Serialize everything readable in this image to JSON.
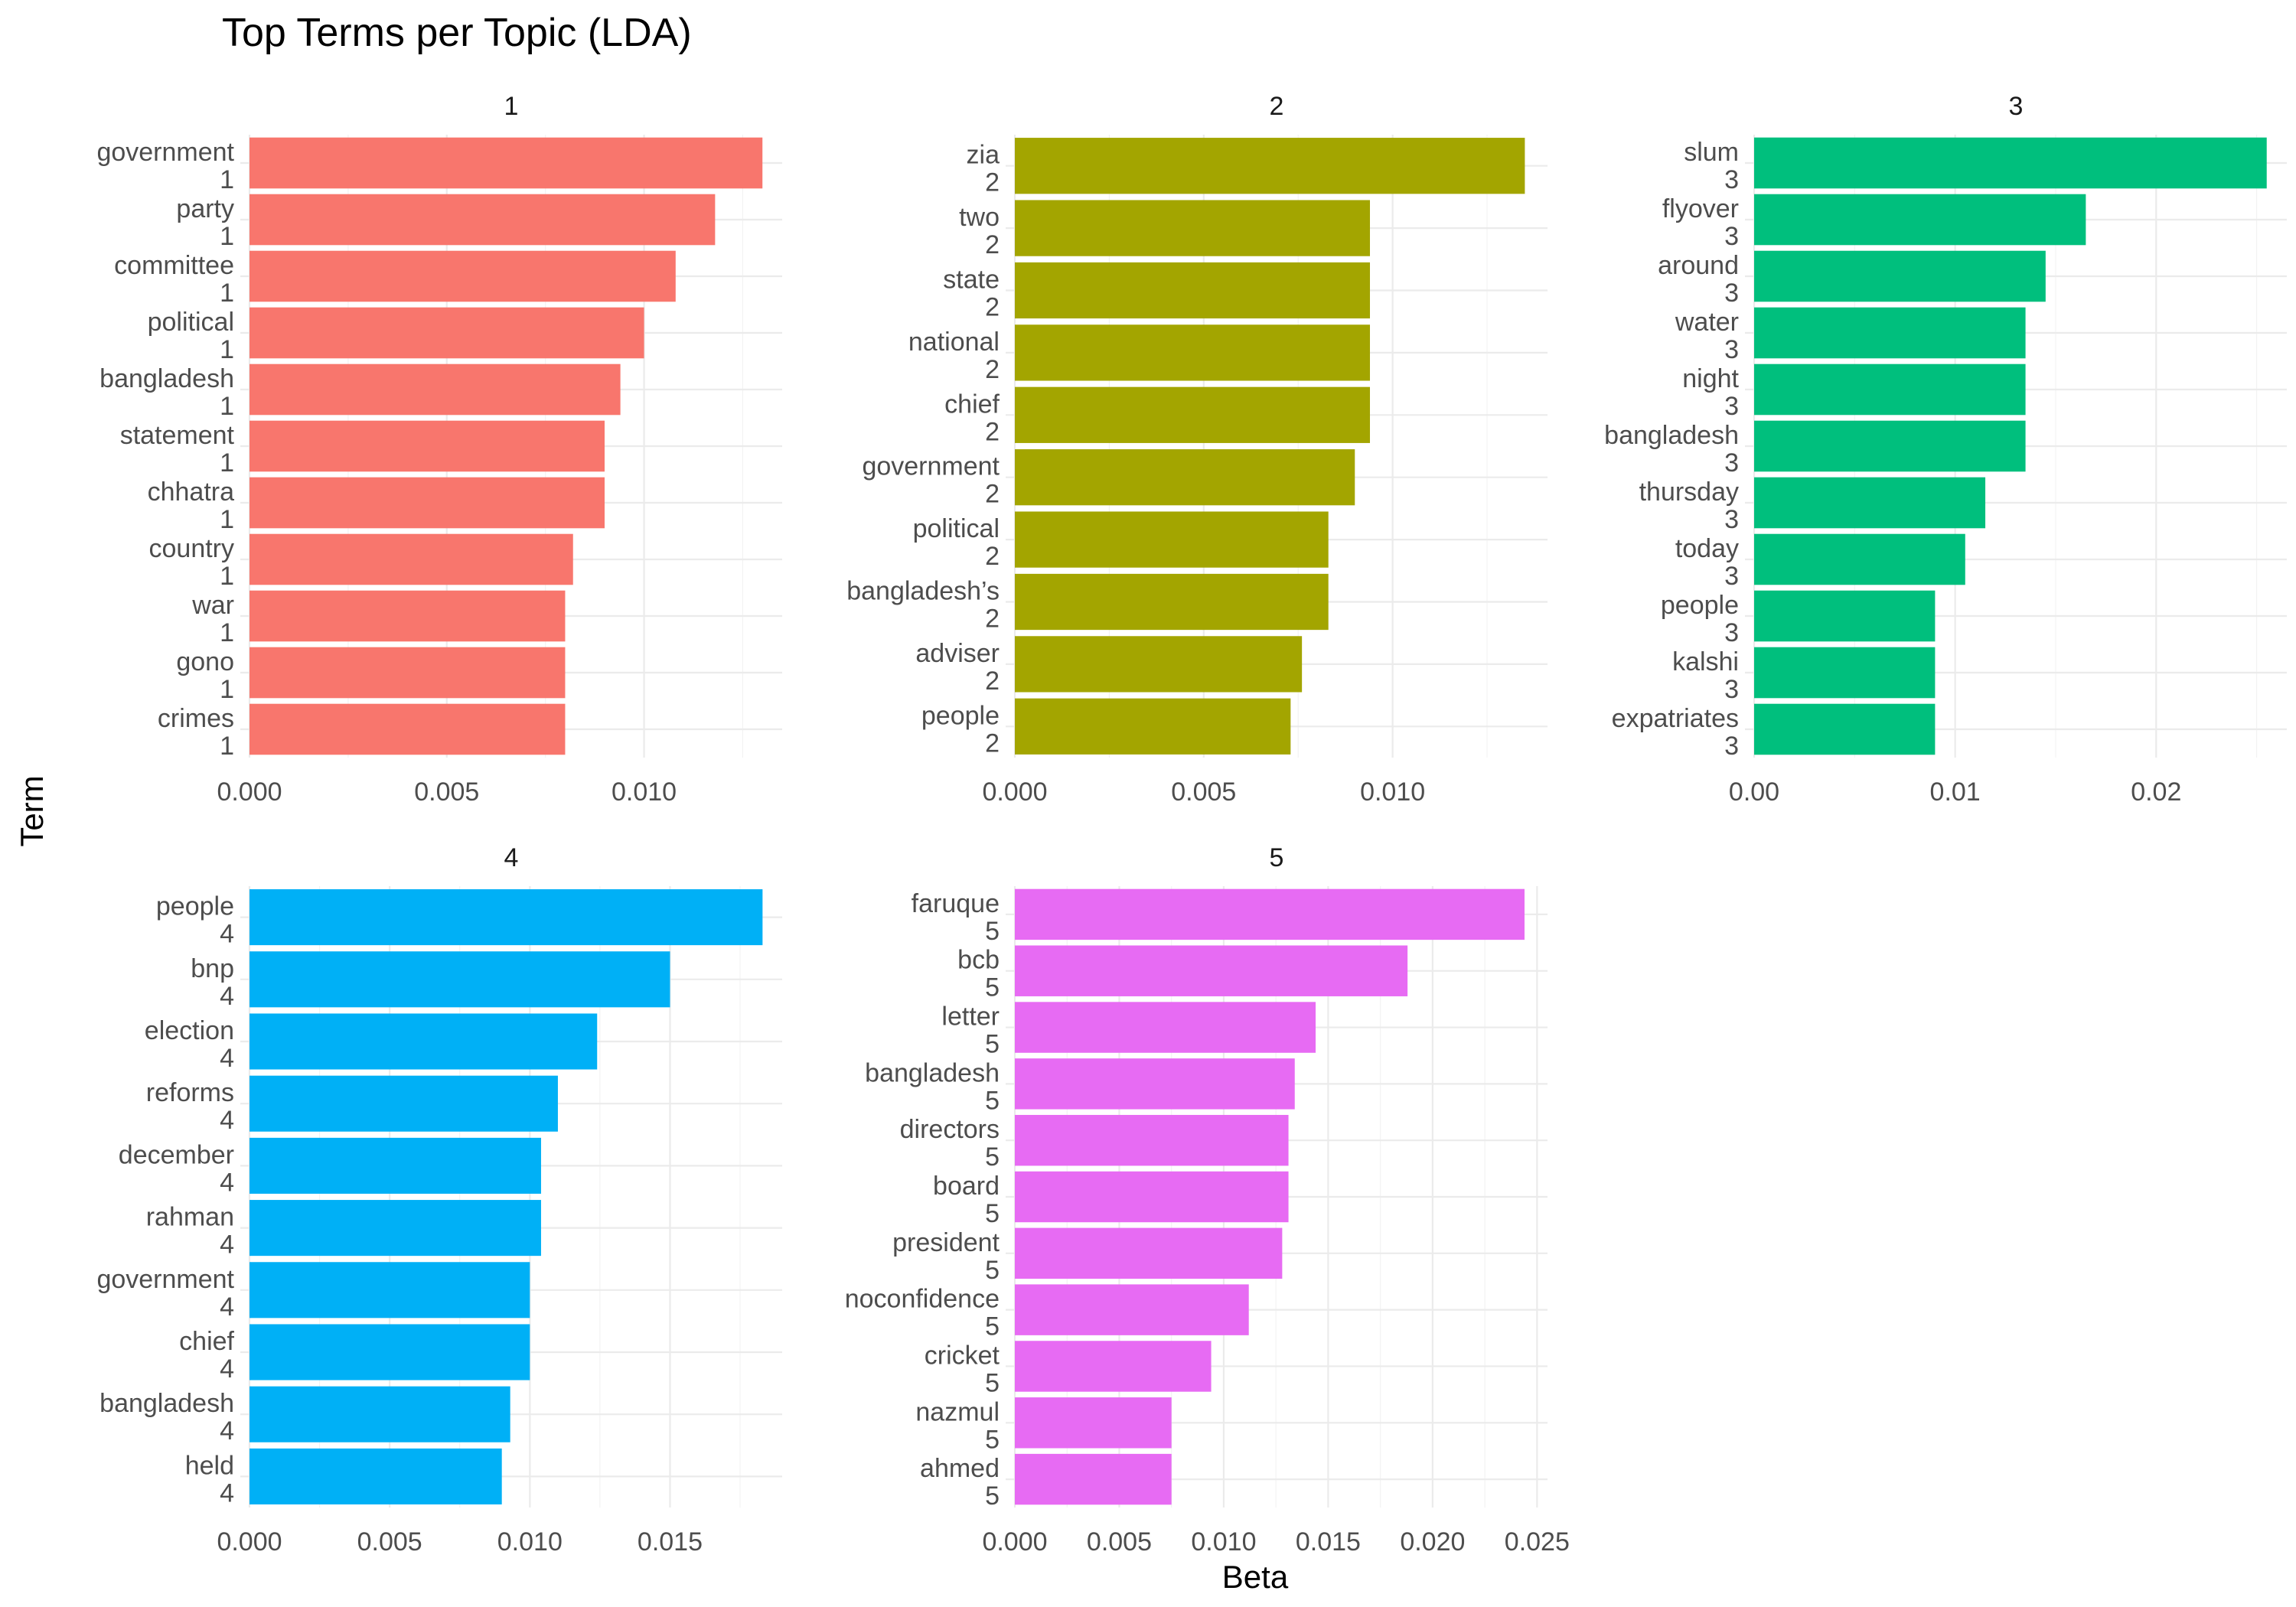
{
  "title": "Top Terms per Topic (LDA)",
  "xlabel": "Beta",
  "ylabel": "Term",
  "chart_data": {
    "type": "bar",
    "orientation": "horizontal",
    "title": "Top Terms per Topic (LDA)",
    "xlabel": "Beta",
    "ylabel": "Term",
    "grid": true,
    "legend": "none",
    "facets": [
      {
        "name": "1",
        "color": "#F8766D",
        "xlim": [
          0,
          0.0135
        ],
        "xticks": [
          "0.000",
          "0.005",
          "0.010"
        ],
        "xtick_values": [
          0,
          0.005,
          0.01
        ],
        "categories": [
          "government",
          "party",
          "committee",
          "political",
          "bangladesh",
          "statement",
          "chhatra",
          "country",
          "war",
          "gono",
          "crimes"
        ],
        "category_suffix": "1",
        "values": [
          0.013,
          0.0118,
          0.0108,
          0.01,
          0.0094,
          0.009,
          0.009,
          0.0082,
          0.008,
          0.008,
          0.008
        ]
      },
      {
        "name": "2",
        "color": "#A3A500",
        "xlim": [
          0,
          0.0141
        ],
        "xticks": [
          "0.000",
          "0.005",
          "0.010"
        ],
        "xtick_values": [
          0,
          0.005,
          0.01
        ],
        "categories": [
          "zia",
          "two",
          "state",
          "national",
          "chief",
          "government",
          "political",
          "bangladesh’s",
          "adviser",
          "people"
        ],
        "category_suffix": "2",
        "values": [
          0.0135,
          0.0094,
          0.0094,
          0.0094,
          0.0094,
          0.009,
          0.0083,
          0.0083,
          0.0076,
          0.0073
        ]
      },
      {
        "name": "3",
        "color": "#00BF7D",
        "xlim": [
          0,
          0.0265
        ],
        "xticks": [
          "0.00",
          "0.01",
          "0.02"
        ],
        "xtick_values": [
          0,
          0.01,
          0.02
        ],
        "categories": [
          "slum",
          "flyover",
          "around",
          "water",
          "night",
          "bangladesh",
          "thursday",
          "today",
          "people",
          "kalshi",
          "expatriates"
        ],
        "category_suffix": "3",
        "values": [
          0.0255,
          0.0165,
          0.0145,
          0.0135,
          0.0135,
          0.0135,
          0.0115,
          0.0105,
          0.009,
          0.009,
          0.009
        ]
      },
      {
        "name": "4",
        "color": "#00B0F6",
        "xlim": [
          0,
          0.019
        ],
        "xticks": [
          "0.000",
          "0.005",
          "0.010",
          "0.015"
        ],
        "xtick_values": [
          0,
          0.005,
          0.01,
          0.015
        ],
        "categories": [
          "people",
          "bnp",
          "election",
          "reforms",
          "december",
          "rahman",
          "government",
          "chief",
          "bangladesh",
          "held"
        ],
        "category_suffix": "4",
        "values": [
          0.0183,
          0.015,
          0.0124,
          0.011,
          0.0104,
          0.0104,
          0.01,
          0.01,
          0.0093,
          0.009
        ]
      },
      {
        "name": "5",
        "color": "#E76BF3",
        "xlim": [
          0,
          0.0255
        ],
        "xticks": [
          "0.000",
          "0.005",
          "0.010",
          "0.015",
          "0.020",
          "0.025"
        ],
        "xtick_values": [
          0,
          0.005,
          0.01,
          0.015,
          0.02,
          0.025
        ],
        "categories": [
          "faruque",
          "bcb",
          "letter",
          "bangladesh",
          "directors",
          "board",
          "president",
          "noconfidence",
          "cricket",
          "nazmul",
          "ahmed"
        ],
        "category_suffix": "5",
        "values": [
          0.0244,
          0.0188,
          0.0144,
          0.0134,
          0.0131,
          0.0131,
          0.0128,
          0.0112,
          0.0094,
          0.0075,
          0.0075
        ]
      }
    ]
  }
}
